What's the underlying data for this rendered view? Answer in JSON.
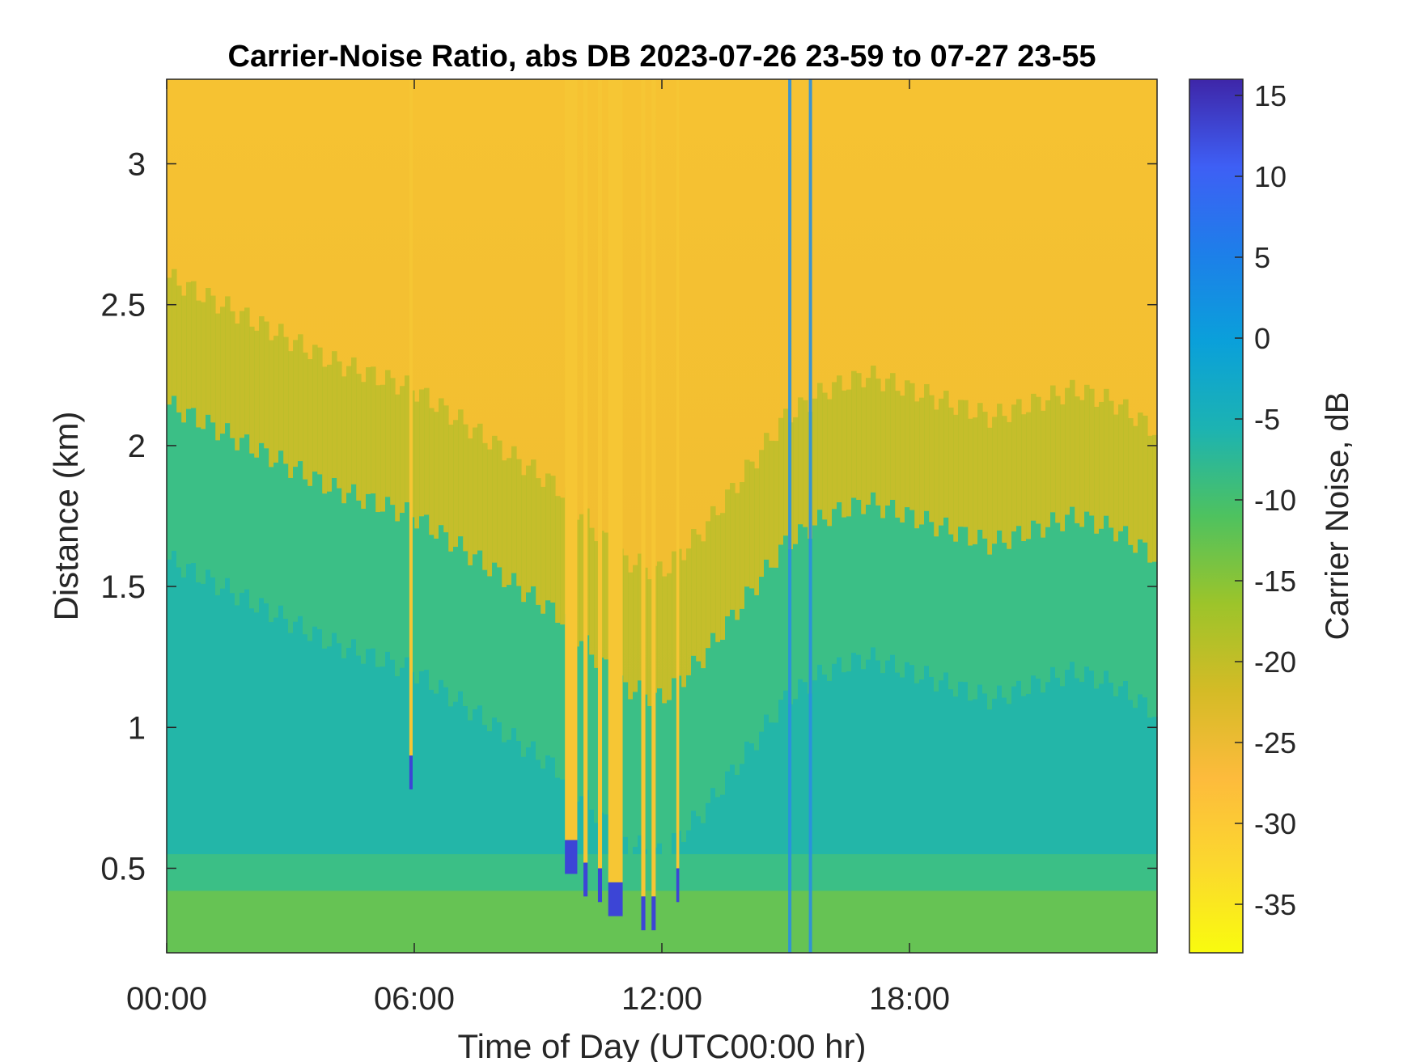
{
  "chart_data": {
    "type": "heatmap",
    "title": "Carrier-Noise Ratio, abs DB 2023-07-26 23-59 to 07-27 23-55",
    "xlabel": "Time of Day (UTC00:00 hr)",
    "ylabel": "Distance (km)",
    "x_range_hours": [
      0,
      24
    ],
    "y_range_km": [
      0.2,
      3.3
    ],
    "x_ticks": [
      {
        "hour": 0,
        "label": "00:00"
      },
      {
        "hour": 6,
        "label": "06:00"
      },
      {
        "hour": 12,
        "label": "12:00"
      },
      {
        "hour": 18,
        "label": "18:00"
      }
    ],
    "y_ticks": [
      {
        "km": 0.5,
        "label": "0.5"
      },
      {
        "km": 1,
        "label": "1"
      },
      {
        "km": 1.5,
        "label": "1.5"
      },
      {
        "km": 2,
        "label": "2"
      },
      {
        "km": 2.5,
        "label": "2.5"
      },
      {
        "km": 3,
        "label": "3"
      }
    ],
    "colorbar": {
      "label": "Carrier Noise, dB",
      "range": [
        -38,
        16
      ],
      "ticks": [
        {
          "value": 15,
          "label": "15"
        },
        {
          "value": 10,
          "label": "10"
        },
        {
          "value": 5,
          "label": "5"
        },
        {
          "value": 0,
          "label": "0"
        },
        {
          "value": -5,
          "label": "-5"
        },
        {
          "value": -10,
          "label": "-10"
        },
        {
          "value": -15,
          "label": "-15"
        },
        {
          "value": -20,
          "label": "-20"
        },
        {
          "value": -25,
          "label": "-25"
        },
        {
          "value": -30,
          "label": "-30"
        },
        {
          "value": -35,
          "label": "-35"
        }
      ],
      "colormap": "parula"
    },
    "boundary_layer_top_km": [
      {
        "hour": 0,
        "km": 2.15
      },
      {
        "hour": 2,
        "km": 2.0
      },
      {
        "hour": 4,
        "km": 1.85
      },
      {
        "hour": 6,
        "km": 1.75
      },
      {
        "hour": 8,
        "km": 1.55
      },
      {
        "hour": 9.5,
        "km": 1.4
      },
      {
        "hour": 11,
        "km": 1.15
      },
      {
        "hour": 12,
        "km": 1.1
      },
      {
        "hour": 13,
        "km": 1.25
      },
      {
        "hour": 14,
        "km": 1.45
      },
      {
        "hour": 15,
        "km": 1.65
      },
      {
        "hour": 16,
        "km": 1.75
      },
      {
        "hour": 17,
        "km": 1.8
      },
      {
        "hour": 18,
        "km": 1.75
      },
      {
        "hour": 19,
        "km": 1.7
      },
      {
        "hour": 20,
        "km": 1.65
      },
      {
        "hour": 21,
        "km": 1.7
      },
      {
        "hour": 22,
        "km": 1.75
      },
      {
        "hour": 23,
        "km": 1.7
      },
      {
        "hour": 24,
        "km": 1.6
      }
    ],
    "rain_shafts": [
      {
        "start_hour": 9.65,
        "end_hour": 9.95,
        "bottom_km": 0.6
      },
      {
        "start_hour": 10.1,
        "end_hour": 10.2,
        "bottom_km": 0.52
      },
      {
        "start_hour": 10.45,
        "end_hour": 10.55,
        "bottom_km": 0.5
      },
      {
        "start_hour": 10.7,
        "end_hour": 11.05,
        "bottom_km": 0.45
      },
      {
        "start_hour": 11.5,
        "end_hour": 11.6,
        "bottom_km": 0.4
      },
      {
        "start_hour": 11.75,
        "end_hour": 11.85,
        "bottom_km": 0.4
      },
      {
        "start_hour": 12.35,
        "end_hour": 12.42,
        "bottom_km": 0.5
      },
      {
        "start_hour": 5.88,
        "end_hour": 5.96,
        "bottom_km": 0.9
      }
    ],
    "strong_echo_columns_hours": [
      15.1,
      15.6
    ]
  }
}
